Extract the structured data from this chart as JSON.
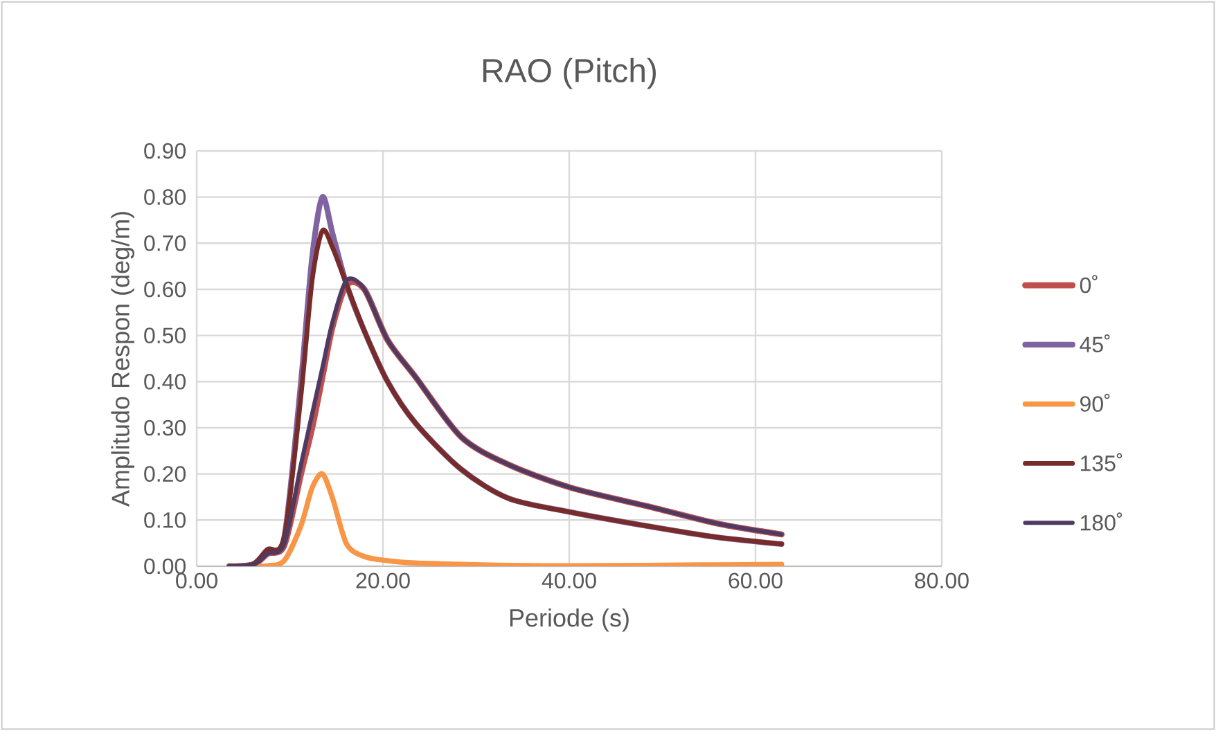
{
  "chart_data": {
    "type": "line",
    "title": "RAO (Pitch)",
    "xlabel": "Periode (s)",
    "ylabel": "Amplitudo Respon (deg/m)",
    "xlim": [
      0,
      80
    ],
    "ylim": [
      0,
      0.9
    ],
    "xticks": [
      {
        "value": 0,
        "label": "0.00"
      },
      {
        "value": 20,
        "label": "20.00"
      },
      {
        "value": 40,
        "label": "40.00"
      },
      {
        "value": 60,
        "label": "60.00"
      },
      {
        "value": 80,
        "label": "80.00"
      }
    ],
    "yticks": [
      {
        "value": 0,
        "label": "0.00"
      },
      {
        "value": 0.1,
        "label": "0.10"
      },
      {
        "value": 0.2,
        "label": "0.20"
      },
      {
        "value": 0.3,
        "label": "0.30"
      },
      {
        "value": 0.4,
        "label": "0.40"
      },
      {
        "value": 0.5,
        "label": "0.50"
      },
      {
        "value": 0.6,
        "label": "0.60"
      },
      {
        "value": 0.7,
        "label": "0.70"
      },
      {
        "value": 0.8,
        "label": "0.80"
      },
      {
        "value": 0.9,
        "label": "0.90"
      }
    ],
    "grid": true,
    "legend": "right",
    "marker": "none",
    "line_style": "solid",
    "x": [
      3.5,
      6.1,
      7.6,
      9.4,
      11.2,
      12.4,
      13.5,
      14.6,
      16.1,
      18.0,
      20.5,
      23.5,
      28.4,
      33.5,
      40.2,
      48.4,
      55.8,
      62.8
    ],
    "series": [
      {
        "name": "0˚",
        "color": "#c0504d",
        "values": [
          0,
          0.003,
          0.027,
          0.045,
          0.2,
          0.3,
          0.41,
          0.52,
          0.61,
          0.6,
          0.49,
          0.41,
          0.28,
          0.22,
          0.17,
          0.13,
          0.093,
          0.069
        ]
      },
      {
        "name": "45˚",
        "color": "#8064a2",
        "values": [
          0,
          0.005,
          0.036,
          0.063,
          0.4,
          0.67,
          0.8,
          0.72,
          0.61,
          0.51,
          0.4,
          0.31,
          0.21,
          0.147,
          0.117,
          0.087,
          0.063,
          0.048
        ]
      },
      {
        "name": "90˚",
        "color": "#f79646",
        "values": [
          0,
          0,
          0.001,
          0.012,
          0.088,
          0.17,
          0.2,
          0.147,
          0.048,
          0.021,
          0.012,
          0.007,
          0.004,
          0.002,
          0.001,
          0.002,
          0.003,
          0.004
        ]
      },
      {
        "name": "135˚",
        "color": "#772c2a",
        "values": [
          0,
          0.005,
          0.036,
          0.063,
          0.37,
          0.62,
          0.727,
          0.69,
          0.61,
          0.51,
          0.4,
          0.31,
          0.21,
          0.147,
          0.117,
          0.087,
          0.063,
          0.048
        ]
      },
      {
        "name": "180˚",
        "color": "#4f3b62",
        "values": [
          0,
          0.003,
          0.027,
          0.048,
          0.22,
          0.33,
          0.43,
          0.53,
          0.62,
          0.6,
          0.49,
          0.41,
          0.28,
          0.22,
          0.17,
          0.13,
          0.093,
          0.069
        ]
      }
    ]
  }
}
